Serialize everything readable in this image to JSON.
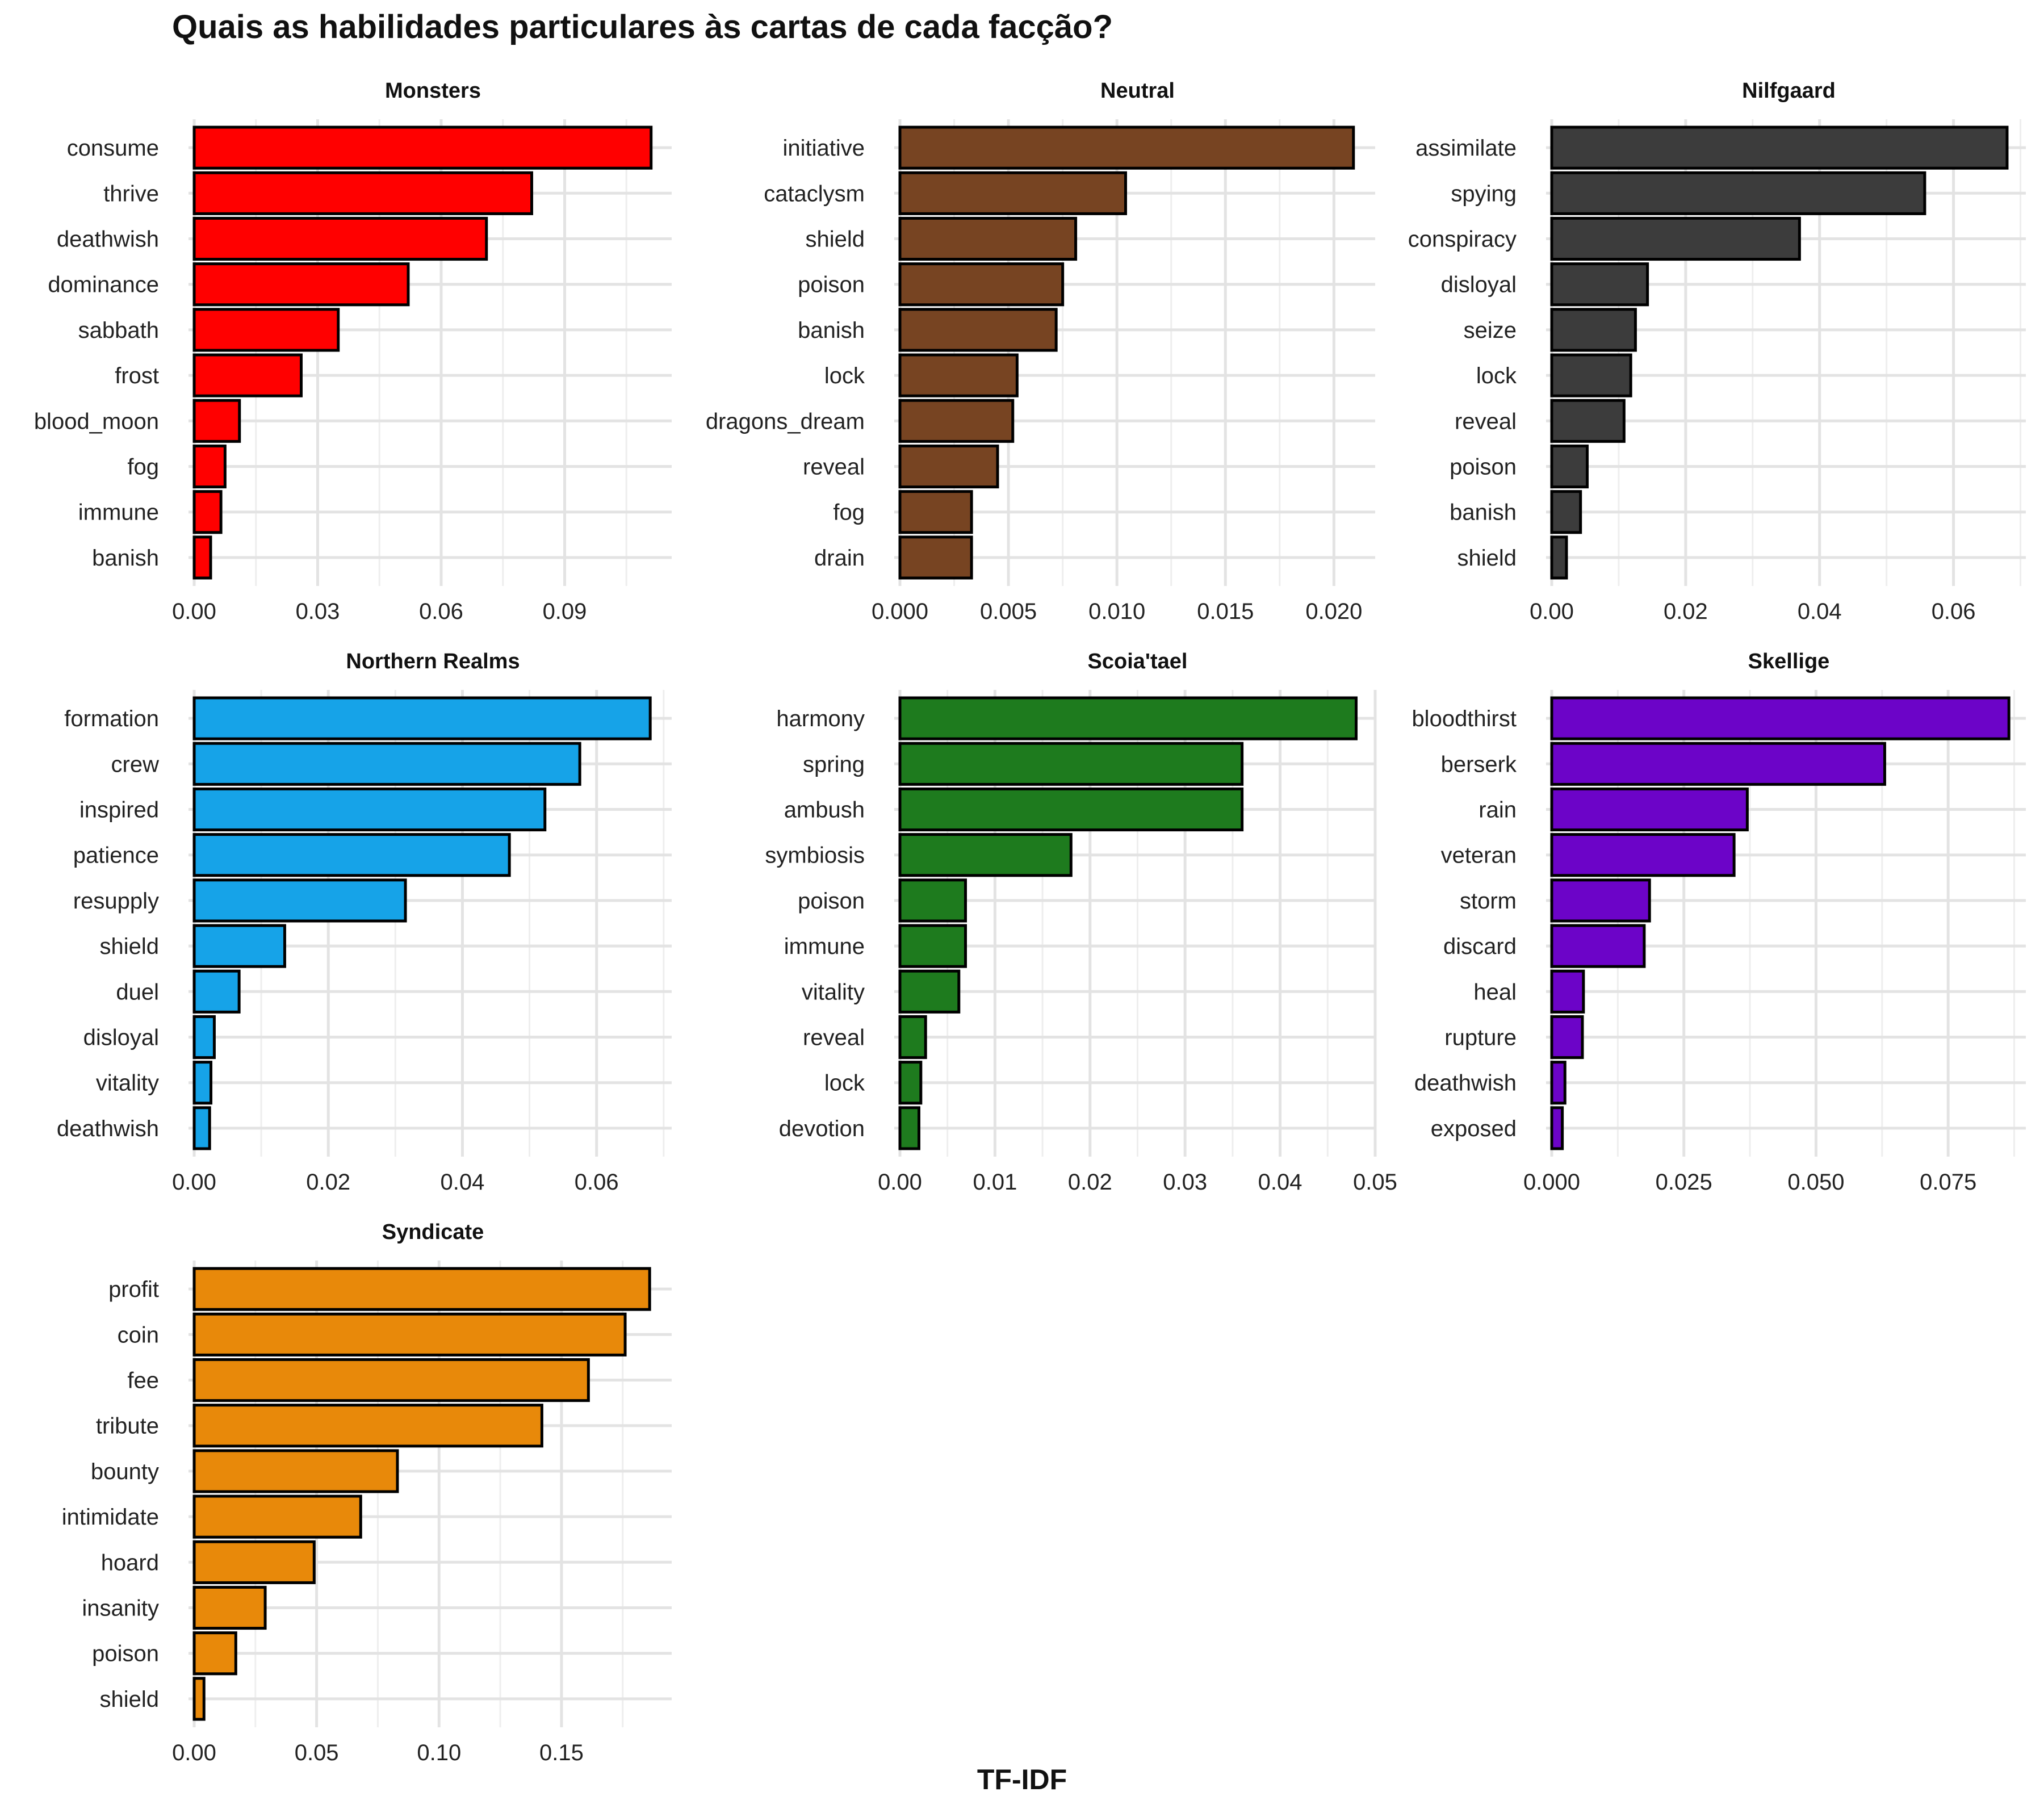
{
  "title": "Quais as habilidades particulares às cartas de cada facção?",
  "xlabel": "TF-IDF",
  "chart_data": [
    {
      "type": "bar",
      "orientation": "horizontal",
      "title": "Monsters",
      "color": "#ff0000",
      "categories": [
        "consume",
        "thrive",
        "deathwish",
        "dominance",
        "sabbath",
        "frost",
        "blood_moon",
        "fog",
        "immune",
        "banish"
      ],
      "values": [
        0.111,
        0.082,
        0.071,
        0.052,
        0.035,
        0.026,
        0.011,
        0.0075,
        0.0065,
        0.004
      ],
      "xlim": [
        0,
        0.116
      ],
      "ticks": [
        0.0,
        0.03,
        0.06,
        0.09
      ],
      "tick_labels": [
        "0.00",
        "0.03",
        "0.06",
        "0.09"
      ]
    },
    {
      "type": "bar",
      "orientation": "horizontal",
      "title": "Neutral",
      "color": "#774422",
      "categories": [
        "initiative",
        "cataclysm",
        "shield",
        "poison",
        "banish",
        "lock",
        "dragons_dream",
        "reveal",
        "fog",
        "drain"
      ],
      "values": [
        0.0209,
        0.0104,
        0.0081,
        0.0075,
        0.0072,
        0.0054,
        0.0052,
        0.0045,
        0.0033,
        0.0033
      ],
      "xlim": [
        0,
        0.0219
      ],
      "ticks": [
        0.0,
        0.005,
        0.01,
        0.015,
        0.02
      ],
      "tick_labels": [
        "0.000",
        "0.005",
        "0.010",
        "0.015",
        "0.020"
      ]
    },
    {
      "type": "bar",
      "orientation": "horizontal",
      "title": "Nilfgaard",
      "color": "#3c3c3c",
      "categories": [
        "assimilate",
        "spying",
        "conspiracy",
        "disloyal",
        "seize",
        "lock",
        "reveal",
        "poison",
        "banish",
        "shield"
      ],
      "values": [
        0.068,
        0.0557,
        0.037,
        0.0143,
        0.0125,
        0.0118,
        0.0108,
        0.0053,
        0.0043,
        0.0022
      ],
      "xlim": [
        0,
        0.0708
      ],
      "ticks": [
        0.0,
        0.02,
        0.04,
        0.06
      ],
      "tick_labels": [
        "0.00",
        "0.02",
        "0.04",
        "0.06"
      ]
    },
    {
      "type": "bar",
      "orientation": "horizontal",
      "title": "Northern Realms",
      "color": "#16a3e8",
      "categories": [
        "formation",
        "crew",
        "inspired",
        "patience",
        "resupply",
        "shield",
        "duel",
        "disloyal",
        "vitality",
        "deathwish"
      ],
      "values": [
        0.068,
        0.0575,
        0.0523,
        0.047,
        0.0315,
        0.0135,
        0.0067,
        0.003,
        0.0025,
        0.0023
      ],
      "xlim": [
        0,
        0.0712
      ],
      "ticks": [
        0.0,
        0.02,
        0.04,
        0.06
      ],
      "tick_labels": [
        "0.00",
        "0.02",
        "0.04",
        "0.06"
      ]
    },
    {
      "type": "bar",
      "orientation": "horizontal",
      "title": "Scoia'tael",
      "color": "#1e7b1e",
      "categories": [
        "harmony",
        "spring",
        "ambush",
        "symbiosis",
        "poison",
        "immune",
        "vitality",
        "reveal",
        "lock",
        "devotion"
      ],
      "values": [
        0.048,
        0.036,
        0.036,
        0.018,
        0.0069,
        0.0069,
        0.0062,
        0.0027,
        0.0022,
        0.002
      ],
      "xlim": [
        0,
        0.05
      ],
      "ticks": [
        0.0,
        0.01,
        0.02,
        0.03,
        0.04,
        0.05
      ],
      "tick_labels": [
        "0.00",
        "0.01",
        "0.02",
        "0.03",
        "0.04",
        "0.05"
      ]
    },
    {
      "type": "bar",
      "orientation": "horizontal",
      "title": "Skellige",
      "color": "#6c04c8",
      "categories": [
        "bloodthirst",
        "berserk",
        "rain",
        "veteran",
        "storm",
        "discard",
        "heal",
        "rupture",
        "deathwish",
        "exposed"
      ],
      "values": [
        0.0865,
        0.063,
        0.037,
        0.0345,
        0.0185,
        0.0175,
        0.006,
        0.0058,
        0.0025,
        0.002
      ],
      "xlim": [
        0,
        0.0897
      ],
      "ticks": [
        0.0,
        0.025,
        0.05,
        0.075
      ],
      "tick_labels": [
        "0.000",
        "0.025",
        "0.050",
        "0.075"
      ]
    },
    {
      "type": "bar",
      "orientation": "horizontal",
      "title": "Syndicate",
      "color": "#e8890a",
      "categories": [
        "profit",
        "coin",
        "fee",
        "tribute",
        "bounty",
        "intimidate",
        "hoard",
        "insanity",
        "poison",
        "shield"
      ],
      "values": [
        0.186,
        0.176,
        0.161,
        0.142,
        0.083,
        0.068,
        0.049,
        0.029,
        0.017,
        0.004
      ],
      "xlim": [
        0,
        0.195
      ],
      "ticks": [
        0.0,
        0.05,
        0.1,
        0.15
      ],
      "tick_labels": [
        "0.00",
        "0.05",
        "0.10",
        "0.15"
      ]
    }
  ]
}
